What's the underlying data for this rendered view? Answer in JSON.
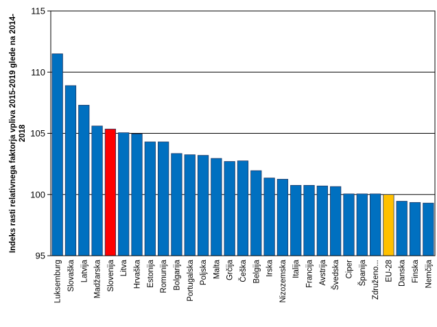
{
  "chart_data": {
    "type": "bar",
    "title": "",
    "xlabel": "",
    "ylabel_lines": [
      "Indeks rasti relativnega faktorja vpliva 2015-2019 glede na 2014-",
      "2018"
    ],
    "ylim": [
      95,
      115
    ],
    "yticks": [
      95,
      100,
      105,
      110,
      115
    ],
    "grid": true,
    "legend": "none",
    "categories": [
      "Luksemburg",
      "Slovaška",
      "Latvija",
      "Madžarska",
      "Slovenija",
      "Litva",
      "Hrvaška",
      "Estonija",
      "Romunija",
      "Bolgarija",
      "Portugalska",
      "Poljska",
      "Malta",
      "Grčija",
      "Češka",
      "Belgija",
      "Irska",
      "Nizozemska",
      "Italija",
      "Francija",
      "Avstrija",
      "Švedska",
      "Ciper",
      "Španija",
      "Združeno...",
      "EU-28",
      "Danska",
      "Finska",
      "Nemčija"
    ],
    "values": [
      111.5,
      108.9,
      107.3,
      105.6,
      105.35,
      105.05,
      104.95,
      104.3,
      104.3,
      103.35,
      103.25,
      103.2,
      102.95,
      102.7,
      102.75,
      101.95,
      101.35,
      101.25,
      100.75,
      100.75,
      100.7,
      100.65,
      100.05,
      100.05,
      100.05,
      100.0,
      99.45,
      99.35,
      99.3
    ],
    "colors": {
      "default": "#0070C0",
      "highlight": "#FF0000",
      "average": "#FFC000",
      "border": "#1F3864"
    },
    "bar_colors": [
      "default",
      "default",
      "default",
      "default",
      "highlight",
      "default",
      "default",
      "default",
      "default",
      "default",
      "default",
      "default",
      "default",
      "default",
      "default",
      "default",
      "default",
      "default",
      "default",
      "default",
      "default",
      "default",
      "default",
      "default",
      "default",
      "average",
      "default",
      "default",
      "default"
    ]
  }
}
